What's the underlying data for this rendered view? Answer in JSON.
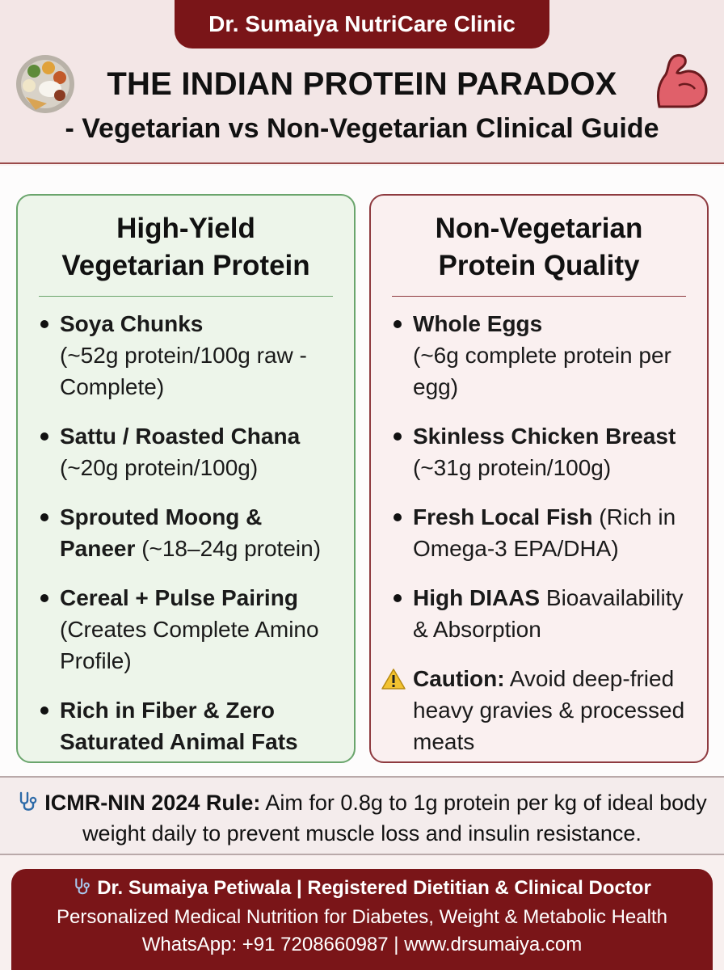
{
  "header": {
    "clinic_name": "Dr. Sumaiya NutriCare Clinic",
    "title": "THE INDIAN PROTEIN PARADOX",
    "subtitle": "- Vegetarian vs Non-Vegetarian Clinical Guide",
    "left_icon": "thali-plate-icon",
    "right_icon": "flexed-bicep-icon"
  },
  "veg": {
    "title": "High-Yield\nVegetarian Protein",
    "items": [
      {
        "bold": "Soya Chunks",
        "text": "(~52g protein/100g raw - Complete)"
      },
      {
        "bold": "Sattu / Roasted Chana",
        "text": "(~20g protein/100g)"
      },
      {
        "bold": "Sprouted Moong & Paneer",
        "text": "(~18–24g protein)"
      },
      {
        "bold": "Cereal + Pulse Pairing",
        "text": "(Creates Complete Amino Profile)"
      },
      {
        "bold": "Rich in Fiber & Zero Saturated Animal Fats",
        "text": ""
      }
    ]
  },
  "nonveg": {
    "title": "Non-Vegetarian\nProtein Quality",
    "items": [
      {
        "bold": "Whole Eggs",
        "text": "(~6g complete protein per egg)"
      },
      {
        "bold": "Skinless Chicken Breast",
        "text": "(~31g protein/100g)"
      },
      {
        "bold": "Fresh Local Fish",
        "text": "(Rich in Omega-3 EPA/DHA)"
      },
      {
        "bold": "High DIAAS",
        "text": "Bioavailability & Absorption"
      }
    ],
    "caution": {
      "bold": "Caution:",
      "text": "Avoid deep-fried heavy gravies & processed meats",
      "icon": "warning-icon"
    }
  },
  "rule": {
    "icon": "stethoscope-icon",
    "bold": "ICMR-NIN 2024 Rule:",
    "text": "Aim for 0.8g to 1g protein per kg of ideal body weight daily to prevent muscle loss and insulin resistance."
  },
  "footer": {
    "line1": "Dr. Sumaiya Petiwala | Registered Dietitian & Clinical Doctor",
    "line2": "Personalized Medical Nutrition for Diabetes, Weight & Metabolic Health",
    "line3": "WhatsApp: +91 7208660987 | www.drsumaiya.com"
  },
  "colors": {
    "maroon": "#7a1518",
    "veg_border": "#6aa56c",
    "veg_bg": "#edf5ea",
    "nonveg_border": "#8e3a3f",
    "nonveg_bg": "#faf0f0"
  }
}
